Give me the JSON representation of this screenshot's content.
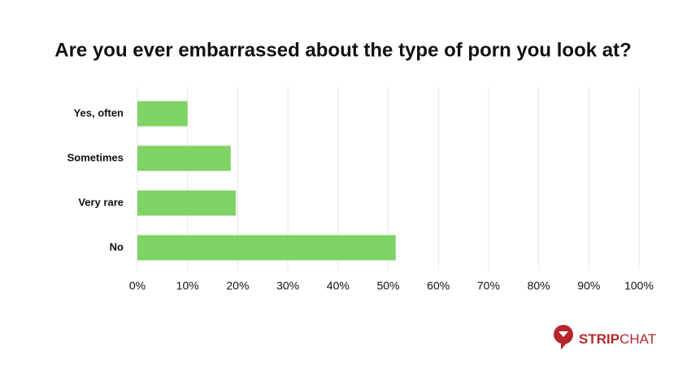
{
  "chart_data": {
    "type": "bar",
    "orientation": "horizontal",
    "title": "Are you ever embarrassed about the type of porn you look at?",
    "categories": [
      "Yes, often",
      "Sometimes",
      "Very rare",
      "No"
    ],
    "values": [
      10,
      18.6,
      19.6,
      51.5
    ],
    "color": "#7ed364",
    "xlim": [
      0,
      100
    ],
    "xticks": [
      {
        "value": 0,
        "label": "0%"
      },
      {
        "value": 10,
        "label": "10%"
      },
      {
        "value": 20,
        "label": "20%"
      },
      {
        "value": 30,
        "label": "30%"
      },
      {
        "value": 40,
        "label": "40%"
      },
      {
        "value": 50,
        "label": "50%"
      },
      {
        "value": 60,
        "label": "60%"
      },
      {
        "value": 70,
        "label": "70%"
      },
      {
        "value": 80,
        "label": "80%"
      },
      {
        "value": 90,
        "label": "90%"
      },
      {
        "value": 100,
        "label": "100%"
      }
    ],
    "grid": true
  },
  "logo": {
    "strong": "STRIP",
    "light": "CHAT"
  }
}
